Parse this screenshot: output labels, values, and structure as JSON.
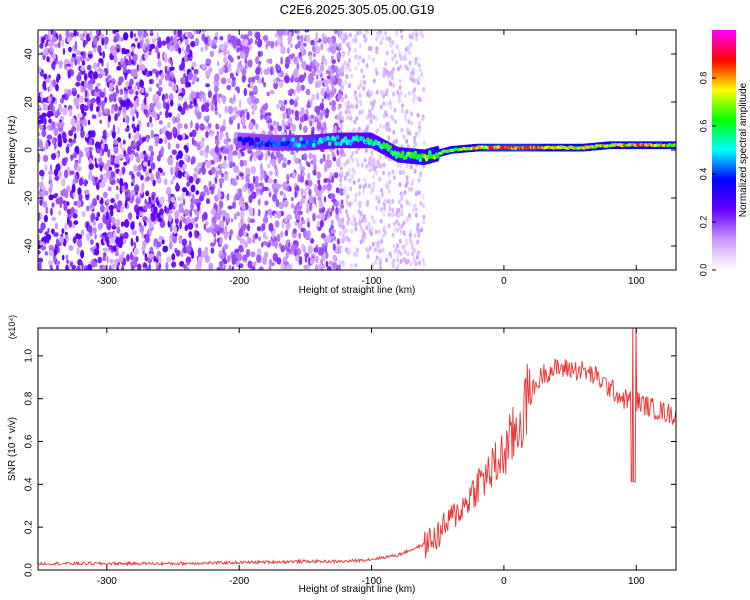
{
  "figure": {
    "title": "C2E6.2025.305.05.00.G19"
  },
  "chart_data": [
    {
      "type": "heatmap",
      "title": "C2E6.2025.305.05.00.G19",
      "xlabel": "Height of straight line (km)",
      "ylabel": "Frequency (Hz)",
      "xlim": [
        -352,
        130
      ],
      "ylim": [
        -50,
        50
      ],
      "x_ticks": [
        -300,
        -200,
        -100,
        0,
        100
      ],
      "y_ticks": [
        -40,
        -20,
        0,
        20,
        40
      ],
      "colorbar": {
        "label": "Normalized spectral amplitude",
        "range": [
          0,
          1
        ],
        "ticks": [
          "0.0",
          "0.2",
          "0.4",
          "0.6",
          "0.8"
        ],
        "colormap": "rainbow",
        "colors": [
          "#ffffff",
          "#cc99ff",
          "#6600ff",
          "#0000ff",
          "#00ffff",
          "#00ff00",
          "#ffff00",
          "#ff0000",
          "#ff00ff"
        ]
      },
      "ridge": {
        "x": [
          -200,
          -175,
          -150,
          -125,
          -100,
          -80,
          -60,
          -40,
          -20,
          0,
          20,
          40,
          60,
          80,
          100,
          130
        ],
        "frequency": [
          4,
          3,
          3,
          4,
          4,
          -2,
          -3,
          0,
          1,
          1,
          1,
          1,
          1,
          2,
          2,
          2
        ],
        "amplitude": [
          0.4,
          0.45,
          0.5,
          0.55,
          0.6,
          0.65,
          0.7,
          0.75,
          0.85,
          0.9,
          0.9,
          0.8,
          0.8,
          0.8,
          0.85,
          0.8
        ]
      },
      "grid": false
    },
    {
      "type": "line",
      "xlabel": "Height of straight line (km)",
      "ylabel": "SNR (10 * v/v)",
      "y_multiplier": "(x10⁴)",
      "xlim": [
        -352,
        130
      ],
      "ylim": [
        0,
        1.13
      ],
      "x_ticks": [
        -300,
        -200,
        -100,
        0,
        100
      ],
      "y_ticks": [
        0.0,
        0.2,
        0.4,
        0.6,
        0.8,
        1.0
      ],
      "series": [
        {
          "color": "#ee3333",
          "x": [
            -352,
            -300,
            -250,
            -200,
            -150,
            -120,
            -100,
            -80,
            -60,
            -50,
            -40,
            -30,
            -20,
            -10,
            0,
            10,
            20,
            30,
            40,
            50,
            60,
            70,
            80,
            90,
            100,
            110,
            120,
            130
          ],
          "values": [
            0.03,
            0.03,
            0.03,
            0.035,
            0.04,
            0.04,
            0.05,
            0.07,
            0.12,
            0.16,
            0.24,
            0.3,
            0.4,
            0.46,
            0.54,
            0.66,
            0.82,
            0.92,
            0.94,
            0.94,
            0.93,
            0.9,
            0.85,
            0.8,
            0.79,
            0.76,
            0.74,
            0.72
          ]
        }
      ],
      "grid": false
    }
  ]
}
